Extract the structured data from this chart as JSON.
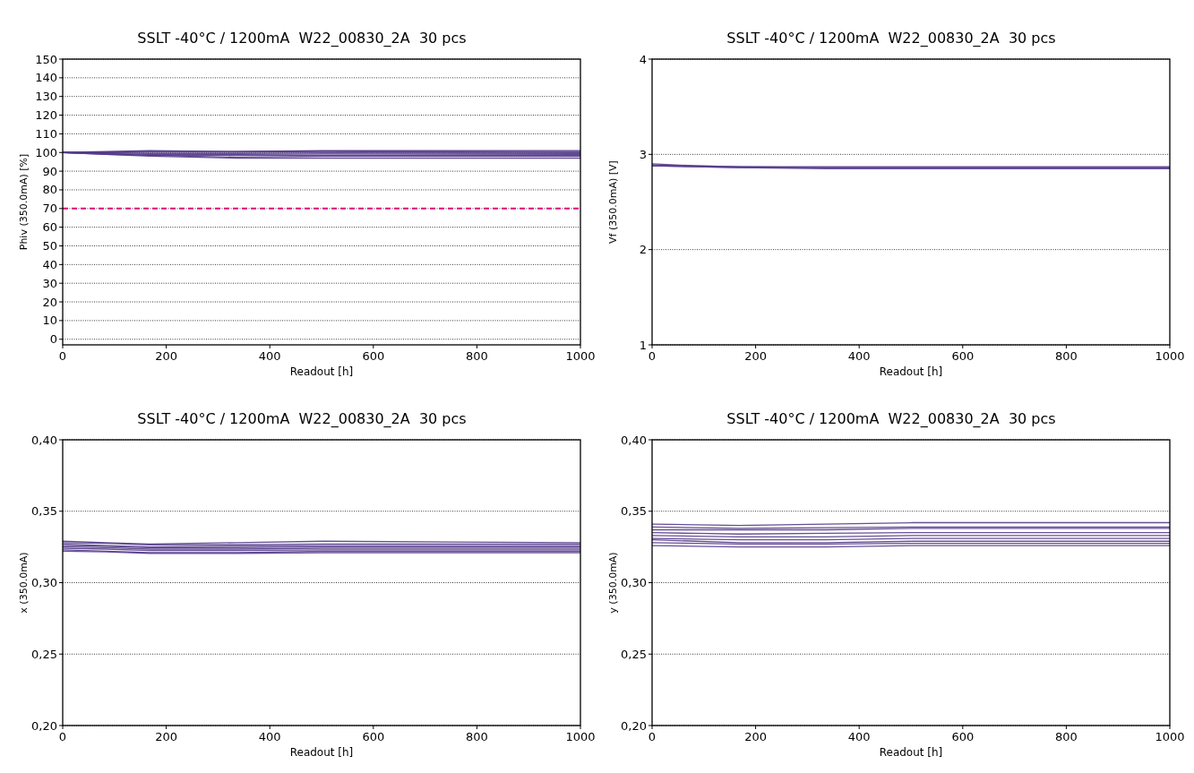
{
  "chart_data": [
    {
      "type": "line",
      "title": "SSLT -40°C / 1200mA  W22_00830_2A  30 pcs",
      "xlabel": "Readout [h]",
      "ylabel": "Phiv  (350.0mA) [%]",
      "x": [
        0,
        84,
        168,
        336,
        504,
        1000
      ],
      "xlim": [
        0,
        1000
      ],
      "xticks": [
        0,
        200,
        400,
        600,
        800,
        1000
      ],
      "ylim": [
        -3,
        150
      ],
      "yticks": [
        0,
        10,
        20,
        30,
        40,
        50,
        60,
        70,
        80,
        90,
        100,
        110,
        120,
        130,
        140,
        150
      ],
      "grid": "y",
      "line_style": "solid",
      "marker": "none",
      "ref_lines": [
        {
          "axis": "y",
          "value": 70,
          "color": "#e0107a",
          "line_style": "dashed"
        }
      ],
      "series": [
        {
          "color": "#553c8b",
          "values": [
            100,
            100.5,
            101,
            100.5,
            101,
            101
          ]
        },
        {
          "color": "#553c8b",
          "values": [
            100,
            100.3,
            100.5,
            100.5,
            100.8,
            100.5
          ]
        },
        {
          "color": "#553c8b",
          "values": [
            100,
            100,
            100.2,
            100.2,
            100.5,
            100
          ]
        },
        {
          "color": "#553c8b",
          "values": [
            100,
            99.8,
            99.5,
            99.5,
            99.8,
            99.5
          ]
        },
        {
          "color": "#553c8b",
          "values": [
            100,
            99.5,
            99,
            99,
            99.2,
            99
          ]
        },
        {
          "color": "#553c8b",
          "values": [
            100,
            99.3,
            98.5,
            98.5,
            98.5,
            98.5
          ]
        },
        {
          "color": "#553c8b",
          "values": [
            100,
            99,
            98.5,
            97.5,
            98,
            98
          ]
        },
        {
          "color": "#553c8b",
          "values": [
            100,
            99,
            98,
            97,
            97,
            97
          ]
        }
      ]
    },
    {
      "type": "line",
      "title": "SSLT -40°C / 1200mA  W22_00830_2A  30 pcs",
      "xlabel": "Readout [h]",
      "ylabel": "Vf  (350.0mA) [V]",
      "x": [
        0,
        84,
        168,
        336,
        504,
        1000
      ],
      "xlim": [
        0,
        1000
      ],
      "xticks": [
        0,
        200,
        400,
        600,
        800,
        1000
      ],
      "ylim": [
        1,
        4
      ],
      "yticks": [
        1,
        2,
        3,
        4
      ],
      "grid": "y",
      "line_style": "solid",
      "marker": "none",
      "series": [
        {
          "color": "#553c8b",
          "values": [
            2.9,
            2.88,
            2.87,
            2.87,
            2.87,
            2.87
          ]
        },
        {
          "color": "#553c8b",
          "values": [
            2.89,
            2.88,
            2.87,
            2.86,
            2.86,
            2.86
          ]
        },
        {
          "color": "#553c8b",
          "values": [
            2.88,
            2.87,
            2.86,
            2.86,
            2.86,
            2.86
          ]
        },
        {
          "color": "#553c8b",
          "values": [
            2.88,
            2.87,
            2.86,
            2.85,
            2.85,
            2.85
          ]
        }
      ]
    },
    {
      "type": "line",
      "title": "SSLT -40°C / 1200mA  W22_00830_2A  30 pcs",
      "xlabel": "Readout [h]",
      "ylabel": "x  (350.0mA)",
      "x": [
        0,
        84,
        168,
        336,
        504,
        1000
      ],
      "xlim": [
        0,
        1000
      ],
      "xticks": [
        0,
        200,
        400,
        600,
        800,
        1000
      ],
      "ylim": [
        0.2,
        0.4
      ],
      "yticks": [
        {
          "value": 0.2,
          "label": "0,20"
        },
        {
          "value": 0.25,
          "label": "0,25"
        },
        {
          "value": 0.3,
          "label": "0,30"
        },
        {
          "value": 0.35,
          "label": "0,35"
        },
        {
          "value": 0.4,
          "label": "0,40"
        }
      ],
      "grid": "y",
      "line_style": "solid",
      "marker": "none",
      "series": [
        {
          "color": "#553c8b",
          "values": [
            0.329,
            0.328,
            0.327,
            0.328,
            0.329,
            0.328
          ]
        },
        {
          "color": "#553c8b",
          "values": [
            0.328,
            0.3275,
            0.3265,
            0.3265,
            0.327,
            0.327
          ]
        },
        {
          "color": "#553c8b",
          "values": [
            0.327,
            0.326,
            0.325,
            0.3255,
            0.326,
            0.326
          ]
        },
        {
          "color": "#553c8b",
          "values": [
            0.326,
            0.3255,
            0.3245,
            0.3245,
            0.325,
            0.325
          ]
        },
        {
          "color": "#553c8b",
          "values": [
            0.325,
            0.3245,
            0.3235,
            0.3235,
            0.324,
            0.324
          ]
        },
        {
          "color": "#553c8b",
          "values": [
            0.324,
            0.3235,
            0.3225,
            0.3225,
            0.323,
            0.323
          ]
        },
        {
          "color": "#553c8b",
          "values": [
            0.323,
            0.322,
            0.321,
            0.321,
            0.322,
            0.322
          ]
        },
        {
          "color": "#553c8b",
          "values": [
            0.322,
            0.3215,
            0.3205,
            0.3205,
            0.321,
            0.321
          ]
        }
      ]
    },
    {
      "type": "line",
      "title": "SSLT -40°C / 1200mA  W22_00830_2A  30 pcs",
      "xlabel": "Readout [h]",
      "ylabel": "y  (350.0mA)",
      "x": [
        0,
        84,
        168,
        336,
        504,
        1000
      ],
      "xlim": [
        0,
        1000
      ],
      "xticks": [
        0,
        200,
        400,
        600,
        800,
        1000
      ],
      "ylim": [
        0.2,
        0.4
      ],
      "yticks": [
        {
          "value": 0.2,
          "label": "0,20"
        },
        {
          "value": 0.25,
          "label": "0,25"
        },
        {
          "value": 0.3,
          "label": "0,30"
        },
        {
          "value": 0.35,
          "label": "0,35"
        },
        {
          "value": 0.4,
          "label": "0,40"
        }
      ],
      "grid": "y",
      "line_style": "solid",
      "marker": "none",
      "series": [
        {
          "color": "#553c8b",
          "values": [
            0.341,
            0.3405,
            0.34,
            0.341,
            0.342,
            0.342
          ]
        },
        {
          "color": "#553c8b",
          "values": [
            0.339,
            0.3385,
            0.338,
            0.3385,
            0.339,
            0.339
          ]
        },
        {
          "color": "#553c8b",
          "values": [
            0.337,
            0.337,
            0.337,
            0.337,
            0.338,
            0.338
          ]
        },
        {
          "color": "#553c8b",
          "values": [
            0.335,
            0.3345,
            0.334,
            0.3345,
            0.335,
            0.335
          ]
        },
        {
          "color": "#553c8b",
          "values": [
            0.333,
            0.3325,
            0.332,
            0.332,
            0.333,
            0.333
          ]
        },
        {
          "color": "#553c8b",
          "values": [
            0.331,
            0.3305,
            0.33,
            0.33,
            0.331,
            0.331
          ]
        },
        {
          "color": "#553c8b",
          "values": [
            0.33,
            0.329,
            0.328,
            0.328,
            0.329,
            0.329
          ]
        },
        {
          "color": "#553c8b",
          "values": [
            0.328,
            0.3275,
            0.327,
            0.327,
            0.3275,
            0.3275
          ]
        },
        {
          "color": "#553c8b",
          "values": [
            0.326,
            0.3255,
            0.325,
            0.325,
            0.326,
            0.326
          ]
        }
      ]
    }
  ]
}
